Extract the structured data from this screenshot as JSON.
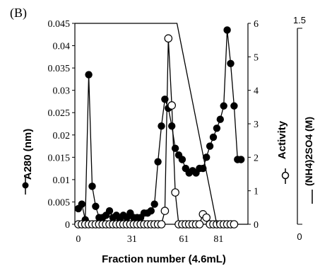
{
  "chart_data": {
    "type": "line",
    "panel_label": "(B)",
    "xlabel": "Fraction number (4.6mL)",
    "x_ticks": [
      "0",
      "31",
      "61",
      "81"
    ],
    "x_tick_values": [
      0,
      31,
      61,
      81
    ],
    "xlim": [
      -2,
      98
    ],
    "left_axis": {
      "label": "A280 (nm)",
      "ylim": [
        0,
        0.045
      ],
      "ticks": [
        "0",
        "0.005",
        "0.01",
        "0.015",
        "0.02",
        "0.025",
        "0.03",
        "0.035",
        "0.04",
        "0.045"
      ],
      "tick_values": [
        0,
        0.005,
        0.01,
        0.015,
        0.02,
        0.025,
        0.03,
        0.035,
        0.04,
        0.045
      ]
    },
    "right_axis": {
      "label": "Activity",
      "ylim": [
        0,
        6
      ],
      "ticks": [
        "0",
        "1",
        "2",
        "3",
        "4",
        "5",
        "6"
      ],
      "tick_values": [
        0,
        1,
        2,
        3,
        4,
        5,
        6
      ]
    },
    "outer_axis": {
      "label": "(NH4)2SO4 (M)",
      "ylim": [
        0,
        1.5
      ],
      "ticks": [
        "0",
        "1.5"
      ],
      "tick_values": [
        0,
        1.5
      ]
    },
    "series": [
      {
        "axis": "left",
        "marker": "filled-circle",
        "x": [
          0,
          2,
          4,
          6,
          8,
          10,
          12,
          14,
          16,
          18,
          20,
          22,
          24,
          26,
          28,
          30,
          32,
          34,
          36,
          38,
          40,
          42,
          44,
          46,
          48,
          50,
          52,
          54,
          56,
          58,
          60,
          62,
          64,
          66,
          68,
          70,
          72,
          74,
          76,
          78,
          80,
          82,
          84,
          86,
          88,
          90,
          92,
          94
        ],
        "y": [
          0.0035,
          0.0045,
          0.001,
          0.0335,
          0.0085,
          0.004,
          0.0015,
          0.0015,
          0.002,
          0.003,
          0.0015,
          0.002,
          0.001,
          0.002,
          0.0015,
          0.0025,
          0.0015,
          0.0015,
          0.0015,
          0.0025,
          0.0025,
          0.003,
          0.0045,
          0.014,
          0.022,
          0.028,
          0.026,
          0.022,
          0.017,
          0.0155,
          0.0145,
          0.0125,
          0.0115,
          0.012,
          0.0115,
          0.0125,
          0.0125,
          0.015,
          0.0175,
          0.0195,
          0.0215,
          0.0235,
          0.0265,
          0.0435,
          0.036,
          0.0265,
          0.0145,
          0.0145
        ],
        "comment": "A280 absorbance profile"
      },
      {
        "axis": "right",
        "marker": "open-circle",
        "x": [
          0,
          2,
          4,
          6,
          8,
          10,
          12,
          14,
          16,
          18,
          20,
          22,
          24,
          26,
          28,
          30,
          32,
          34,
          36,
          38,
          40,
          42,
          44,
          46,
          48,
          50,
          52,
          54,
          56,
          58,
          60,
          62,
          64,
          66,
          68,
          70,
          72,
          74,
          76,
          78,
          80,
          82,
          84,
          86,
          88,
          90
        ],
        "y": [
          0,
          0,
          0,
          0,
          0,
          0,
          0,
          0,
          0,
          0,
          0,
          0,
          0,
          0,
          0,
          0,
          0,
          0,
          0,
          0,
          0,
          0,
          0,
          0,
          0,
          0.4,
          5.55,
          3.55,
          0.95,
          0,
          0,
          0,
          0,
          0,
          0,
          0,
          0.3,
          0.2,
          0,
          0,
          0,
          0,
          0,
          0,
          0,
          0
        ]
      },
      {
        "axis": "outer",
        "marker": "none",
        "x": [
          -2,
          57,
          80
        ],
        "y": [
          1.5,
          1.5,
          0
        ]
      }
    ]
  }
}
